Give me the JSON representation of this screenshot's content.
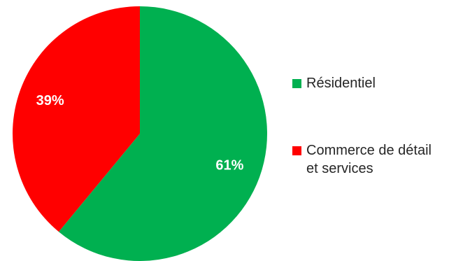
{
  "chart_data": {
    "type": "pie",
    "title": "",
    "categories": [
      "Résidentiel",
      "Commerce de détail et services"
    ],
    "values": [
      61,
      39
    ],
    "data_labels": [
      "61%",
      "39%"
    ],
    "colors": [
      "#00B050",
      "#FF0000"
    ],
    "start_angle": "12 o'clock",
    "direction": "clockwise",
    "legend": {
      "position": "right",
      "entries": [
        {
          "label": "Résidentiel",
          "color": "#00B050"
        },
        {
          "label": "Commerce de détail et services",
          "color": "#FF0000"
        }
      ]
    }
  }
}
